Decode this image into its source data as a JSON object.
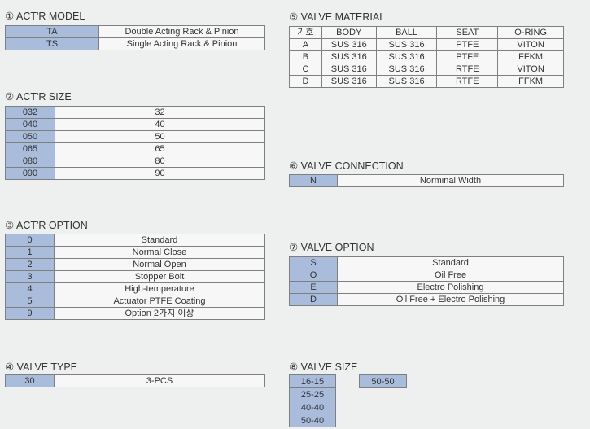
{
  "model": {
    "title": "① ACT'R MODEL",
    "rows": [
      [
        "TA",
        "Double Acting Rack & Pinion"
      ],
      [
        "TS",
        "Single Acting Rack & Pinion"
      ]
    ]
  },
  "size": {
    "title": "② ACT'R SIZE",
    "rows": [
      [
        "032",
        "32"
      ],
      [
        "040",
        "40"
      ],
      [
        "050",
        "50"
      ],
      [
        "065",
        "65"
      ],
      [
        "080",
        "80"
      ],
      [
        "090",
        "90"
      ]
    ]
  },
  "option": {
    "title": "③ ACT'R OPTION",
    "rows": [
      [
        "0",
        "Standard"
      ],
      [
        "1",
        "Normal Close"
      ],
      [
        "2",
        "Normal Open"
      ],
      [
        "3",
        "Stopper Bolt"
      ],
      [
        "4",
        "High-temperature"
      ],
      [
        "5",
        "Actuator PTFE Coating"
      ],
      [
        "9",
        "Option 2가지 이상"
      ]
    ]
  },
  "type": {
    "title": "④ VALVE TYPE",
    "rows": [
      [
        "30",
        "3-PCS"
      ]
    ]
  },
  "material": {
    "title": "⑤ VALVE MATERIAL",
    "header": [
      "기호",
      "BODY",
      "BALL",
      "SEAT",
      "O-RING"
    ],
    "rows": [
      [
        "A",
        "SUS 316",
        "SUS 316",
        "PTFE",
        "VITON"
      ],
      [
        "B",
        "SUS 316",
        "SUS 316",
        "PTFE",
        "FFKM"
      ],
      [
        "C",
        "SUS 316",
        "SUS 316",
        "RTFE",
        "VITON"
      ],
      [
        "D",
        "SUS 316",
        "SUS 316",
        "RTFE",
        "FFKM"
      ]
    ]
  },
  "connection": {
    "title": "⑥ VALVE CONNECTION",
    "rows": [
      [
        "N",
        "Norminal Width"
      ]
    ]
  },
  "voption": {
    "title": "⑦ VALVE OPTION",
    "rows": [
      [
        "S",
        "Standard"
      ],
      [
        "O",
        "Oil Free"
      ],
      [
        "E",
        "Electro Polishing"
      ],
      [
        "D",
        "Oil Free + Electro Polishing"
      ]
    ]
  },
  "vsize": {
    "title": "⑧ VALVE SIZE",
    "col1": [
      "16-15",
      "25-25",
      "40-40",
      "50-40"
    ],
    "col2": [
      "50-50"
    ]
  },
  "colors": {
    "key": "#a9bcdc",
    "cell": "#f7f7f7",
    "background": "#eef0ef"
  }
}
